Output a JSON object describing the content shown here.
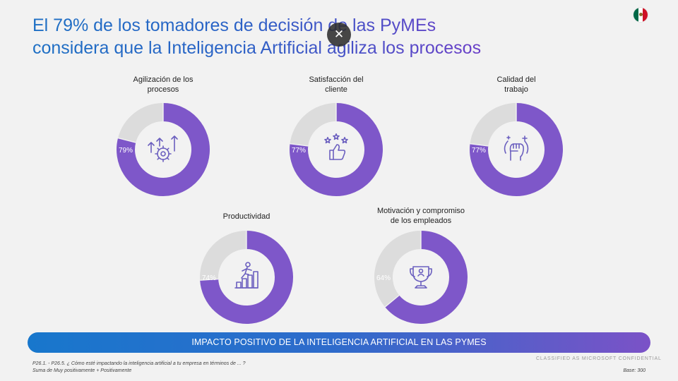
{
  "headline": {
    "line1": "El 79% de los tomadores de decisión de las PyMEs",
    "line2": "considera que la Inteligencia Artificial agiliza los procesos"
  },
  "flag": {
    "icon": "mexico-flag-icon"
  },
  "close_button": {
    "label": "✕"
  },
  "colors": {
    "primary": "#7e57c9",
    "remainder": "#dcdcdc",
    "icon": "#6b5fbf"
  },
  "chart_data": [
    {
      "type": "pie",
      "title_line1": "Agilización de los",
      "title_line2": "procesos",
      "value": 79,
      "label": "79%",
      "icon": "gear-arrows-icon"
    },
    {
      "type": "pie",
      "title_line1": "Satisfacción del",
      "title_line2": "cliente",
      "value": 77,
      "label": "77%",
      "icon": "thumbs-up-stars-icon"
    },
    {
      "type": "pie",
      "title_line1": "Calidad del",
      "title_line2": "trabajo",
      "value": 77,
      "label": "77%",
      "icon": "raised-fist-icon"
    },
    {
      "type": "pie",
      "title_line1": "Productividad",
      "title_line2": "",
      "value": 74,
      "label": "74%",
      "icon": "person-climbing-stairs-icon"
    },
    {
      "type": "pie",
      "title_line1": "Motivación y compromiso",
      "title_line2": "de los empleados",
      "value": 64,
      "label": "64%",
      "icon": "trophy-icon"
    }
  ],
  "banner": {
    "text": "IMPACTO POSITIVO DE LA INTELIGENCIA ARTIFICIAL EN LAS PYMES"
  },
  "footnote": {
    "line1": "P26.1. - P26.5. ¿ Cómo esté impactando la inteligencia artificial a tu empresa en términos de ... ?",
    "line2": "Suma de Muy positivamente + Positivamente"
  },
  "classification": "CLASSIFIED AS MICROSOFT CONFIDENTIAL",
  "base": "Base: 300"
}
